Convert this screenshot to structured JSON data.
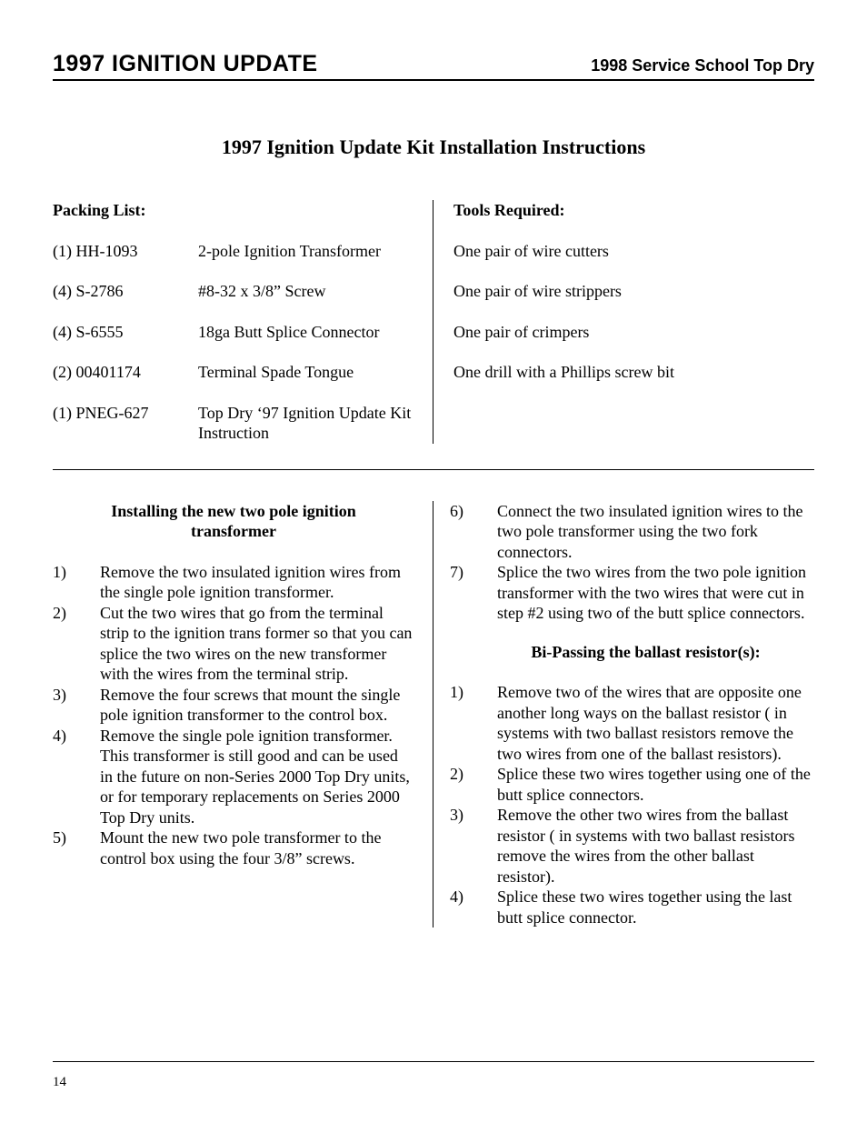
{
  "header": {
    "left": "1997 IGNITION UPDATE",
    "right": "1998 Service School Top Dry"
  },
  "title": "1997 Ignition Update Kit Installation Instructions",
  "packing": {
    "heading": "Packing List:",
    "items": [
      {
        "qty": "(1) HH-1093",
        "desc": "2-pole Ignition Transformer"
      },
      {
        "qty": "(4) S-2786",
        "desc": "#8-32 x 3/8” Screw"
      },
      {
        "qty": "(4) S-6555",
        "desc": "18ga Butt Splice Connector"
      },
      {
        "qty": "(2) 00401174",
        "desc": "Terminal Spade Tongue"
      },
      {
        "qty": "(1) PNEG-627",
        "desc": "Top Dry ‘97 Ignition Update Kit Instruction"
      }
    ]
  },
  "tools": {
    "heading": "Tools Required:",
    "items": [
      "One pair of wire cutters",
      "One pair of wire strippers",
      "One pair of crimpers",
      "One drill with a Phillips screw bit"
    ]
  },
  "install": {
    "heading": "Installing the new two pole ignition transformer",
    "steps": [
      " Remove the two insulated ignition wires from the single pole ignition transformer.",
      "Cut the two wires that go from the terminal strip to the ignition trans former so that you can splice the two wires on the new transformer with the wires from the terminal strip.",
      "Remove the four screws that mount the single pole ignition transformer to the control box.",
      "Remove the single pole ignition transformer.  This transformer is still good and can be used in the future on non-Series 2000 Top Dry units, or for temporary replacements on Series 2000 Top Dry units.",
      "Mount the new two pole transformer to the control box using the four 3/8” screws."
    ],
    "steps_cont": [
      {
        "n": "6)",
        "t": "Connect the two insulated ignition wires to the two pole transformer using the two fork connectors."
      },
      {
        "n": "7)",
        "t": "Splice the two wires from the two pole ignition transformer with the two wires that were cut in step #2 using two of the butt splice connectors."
      }
    ]
  },
  "bypass": {
    "heading": "Bi-Passing the ballast resistor(s):",
    "steps": [
      "Remove two of the wires that are opposite one another long ways on the ballast resistor ( in systems with two ballast resistors remove the two wires from one of the ballast resistors).",
      "Splice these two wires together using one of the butt splice connectors.",
      "Remove the other two wires from the ballast resistor ( in systems with two ballast resistors remove the wires from the other ballast resistor).",
      "Splice these two wires together using the last butt splice connector."
    ]
  },
  "page_number": "14"
}
